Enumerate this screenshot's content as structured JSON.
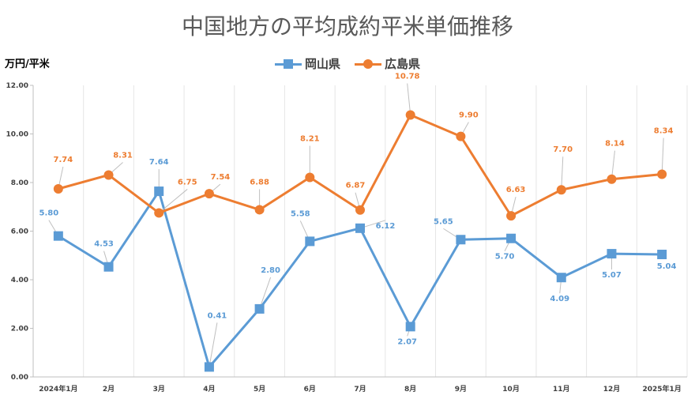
{
  "chart_data": {
    "type": "line",
    "title": "中国地方の平均成約平米単価推移",
    "ylabel": "万円/平米",
    "xlabel": "",
    "categories": [
      "2024年1月",
      "2月",
      "3月",
      "4月",
      "5月",
      "6月",
      "7月",
      "8月",
      "9月",
      "10月",
      "11月",
      "12月",
      "2025年1月"
    ],
    "ylim": [
      0,
      12
    ],
    "yticks": [
      "0.00",
      "2.00",
      "4.00",
      "6.00",
      "8.00",
      "10.00",
      "12.00"
    ],
    "grid": "vertical",
    "legend_position": "top",
    "series": [
      {
        "name": "岡山県",
        "color": "#5B9BD5",
        "marker": "square",
        "values": [
          5.8,
          4.53,
          7.64,
          0.41,
          2.8,
          5.58,
          6.12,
          2.07,
          5.65,
          5.7,
          4.09,
          5.07,
          5.04
        ],
        "labels": [
          "5.80",
          "4.53",
          "7.64",
          "0.41",
          "2.80",
          "5.58",
          "6.12",
          "2.07",
          "5.65",
          "5.70",
          "4.09",
          "5.07",
          "5.04"
        ]
      },
      {
        "name": "広島県",
        "color": "#ED7D31",
        "marker": "circle",
        "values": [
          7.74,
          8.31,
          6.75,
          7.54,
          6.88,
          8.21,
          6.87,
          10.78,
          9.9,
          6.63,
          7.7,
          8.14,
          8.34
        ],
        "labels": [
          "7.74",
          "8.31",
          "6.75",
          "7.54",
          "6.88",
          "8.21",
          "6.87",
          "10.78",
          "9.90",
          "6.63",
          "7.70",
          "8.14",
          "8.34"
        ]
      }
    ]
  }
}
